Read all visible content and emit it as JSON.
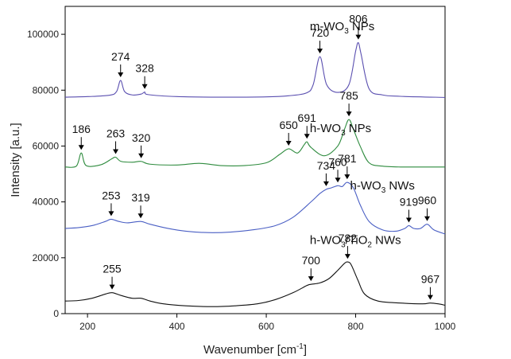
{
  "chart_data": {
    "type": "line",
    "xlabel": "Wavenumber [cm",
    "xlabel_sup": "-1",
    "xlabel_end": "]",
    "ylabel": "Intensity [a.u.]",
    "xlim": [
      150,
      1000
    ],
    "ylim": [
      0,
      110000
    ],
    "x_ticks": [
      200,
      400,
      600,
      800,
      1000
    ],
    "y_ticks": [
      0,
      20000,
      40000,
      60000,
      80000,
      100000
    ],
    "grid": false,
    "series": [
      {
        "name_parts": [
          "m-WO",
          "3",
          " NPs"
        ],
        "color": "#5a4fb0",
        "label_at": [
          790,
          101500
        ],
        "baseline": 77500,
        "peaks": [
          {
            "x": 274,
            "y": 83500,
            "w": 6
          },
          {
            "x": 328,
            "y": 79300,
            "w": 6
          },
          {
            "x": 720,
            "y": 92000,
            "w": 9
          },
          {
            "x": 806,
            "y": 97000,
            "w": 9
          }
        ],
        "x": [
          150,
          200,
          250,
          265,
          274,
          283,
          300,
          320,
          328,
          336,
          400,
          500,
          600,
          650,
          690,
          705,
          720,
          735,
          760,
          785,
          800,
          806,
          812,
          830,
          860,
          900,
          1000
        ],
        "y": [
          77500,
          77700,
          78200,
          79500,
          83500,
          79500,
          78300,
          78600,
          79300,
          78400,
          77700,
          77500,
          77600,
          78000,
          79000,
          82000,
          92000,
          82000,
          79200,
          82000,
          94000,
          97000,
          93000,
          80500,
          78300,
          77800,
          77400
        ],
        "annotations": [
          {
            "x": 274,
            "label": "274"
          },
          {
            "x": 328,
            "label": "328"
          },
          {
            "x": 720,
            "label": "720"
          },
          {
            "x": 806,
            "label": "806"
          }
        ]
      },
      {
        "name_parts": [
          "h-WO",
          "3",
          " NPs"
        ],
        "color": "#2e8b3e",
        "label_at": [
          790,
          65000
        ],
        "baseline": 52500,
        "x": [
          150,
          175,
          186,
          197,
          230,
          255,
          263,
          275,
          300,
          320,
          340,
          400,
          450,
          500,
          550,
          600,
          630,
          650,
          670,
          685,
          691,
          700,
          730,
          760,
          775,
          785,
          795,
          810,
          830,
          860,
          900,
          1000
        ],
        "y": [
          52500,
          52800,
          57500,
          53000,
          53300,
          55500,
          56000,
          54500,
          54200,
          54500,
          53500,
          53200,
          53800,
          53000,
          53000,
          54000,
          57000,
          59000,
          57500,
          60500,
          61500,
          59500,
          56500,
          60000,
          66000,
          69500,
          66000,
          60000,
          54000,
          52800,
          52500,
          52500
        ],
        "annotations": [
          {
            "x": 186,
            "label": "186"
          },
          {
            "x": 263,
            "label": "263"
          },
          {
            "x": 320,
            "label": "320"
          },
          {
            "x": 650,
            "label": "650"
          },
          {
            "x": 691,
            "label": "691"
          },
          {
            "x": 785,
            "label": "785"
          }
        ]
      },
      {
        "name_parts": [
          "h-WO",
          "3",
          " NWs"
        ],
        "color": "#4a5fc4",
        "label_at": [
          880,
          44500
        ],
        "x": [
          150,
          180,
          210,
          240,
          253,
          270,
          290,
          319,
          340,
          380,
          420,
          470,
          520,
          570,
          620,
          660,
          700,
          720,
          734,
          745,
          760,
          770,
          781,
          795,
          810,
          830,
          860,
          890,
          910,
          919,
          930,
          945,
          960,
          975,
          1000
        ],
        "y": [
          30500,
          30800,
          31500,
          33000,
          33800,
          33000,
          32500,
          33000,
          32000,
          30500,
          29500,
          29000,
          29200,
          30000,
          31500,
          34500,
          40000,
          43000,
          44500,
          45000,
          45800,
          45500,
          47000,
          45000,
          39000,
          33000,
          30000,
          29500,
          30500,
          31500,
          30500,
          30500,
          32000,
          30000,
          28500
        ],
        "annotations": [
          {
            "x": 253,
            "label": "253"
          },
          {
            "x": 319,
            "label": "319"
          },
          {
            "x": 734,
            "label": "734"
          },
          {
            "x": 760,
            "label": "760"
          },
          {
            "x": 781,
            "label": "781"
          },
          {
            "x": 919,
            "label": "919"
          },
          {
            "x": 960,
            "label": "960"
          }
        ]
      },
      {
        "name_parts": [
          "h-WO",
          "3",
          "/TiO",
          "2",
          " NWs"
        ],
        "color": "#111111",
        "label_at": [
          790,
          25000
        ],
        "x": [
          150,
          180,
          210,
          240,
          255,
          275,
          300,
          320,
          340,
          370,
          420,
          480,
          530,
          580,
          620,
          660,
          690,
          700,
          720,
          740,
          760,
          775,
          782,
          790,
          805,
          820,
          850,
          900,
          950,
          967,
          985,
          1000
        ],
        "y": [
          4500,
          4700,
          5500,
          7000,
          7500,
          6500,
          5500,
          5500,
          4500,
          3500,
          2800,
          2500,
          2800,
          3500,
          5000,
          7500,
          10000,
          10500,
          11000,
          12500,
          15500,
          18000,
          18500,
          17500,
          12000,
          7000,
          4500,
          3800,
          3500,
          3800,
          3500,
          3000
        ],
        "annotations": [
          {
            "x": 255,
            "label": "255"
          },
          {
            "x": 700,
            "label": "700"
          },
          {
            "x": 782,
            "label": "782"
          },
          {
            "x": 967,
            "label": "967"
          }
        ]
      }
    ]
  }
}
